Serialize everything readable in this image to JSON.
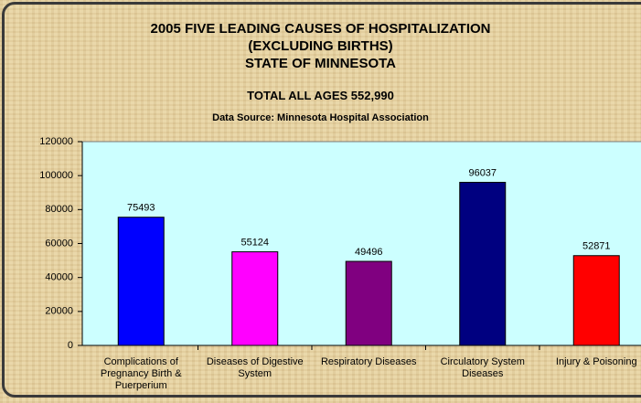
{
  "chart_data": {
    "type": "bar",
    "title": [
      "2005 FIVE LEADING CAUSES OF HOSPITALIZATION",
      "(EXCLUDING BIRTHS)",
      "STATE OF MINNESOTA"
    ],
    "subtitle": [
      "TOTAL ALL AGES 552,990",
      "Data Source:  Minnesota Hospital Association"
    ],
    "categories": [
      "Complications of Pregnancy Birth & Puerperium",
      "Diseases of Digestive System",
      "Respiratory Diseases",
      "Circulatory System Diseases",
      "Injury & Poisoning"
    ],
    "values": [
      75493,
      55124,
      49496,
      96037,
      52871
    ],
    "colors": [
      "#0000ff",
      "#ff00ff",
      "#800080",
      "#000080",
      "#ff0000"
    ],
    "ylim": [
      0,
      120000
    ],
    "yticks": [
      0,
      20000,
      40000,
      60000,
      80000,
      100000,
      120000
    ],
    "grid": false
  }
}
